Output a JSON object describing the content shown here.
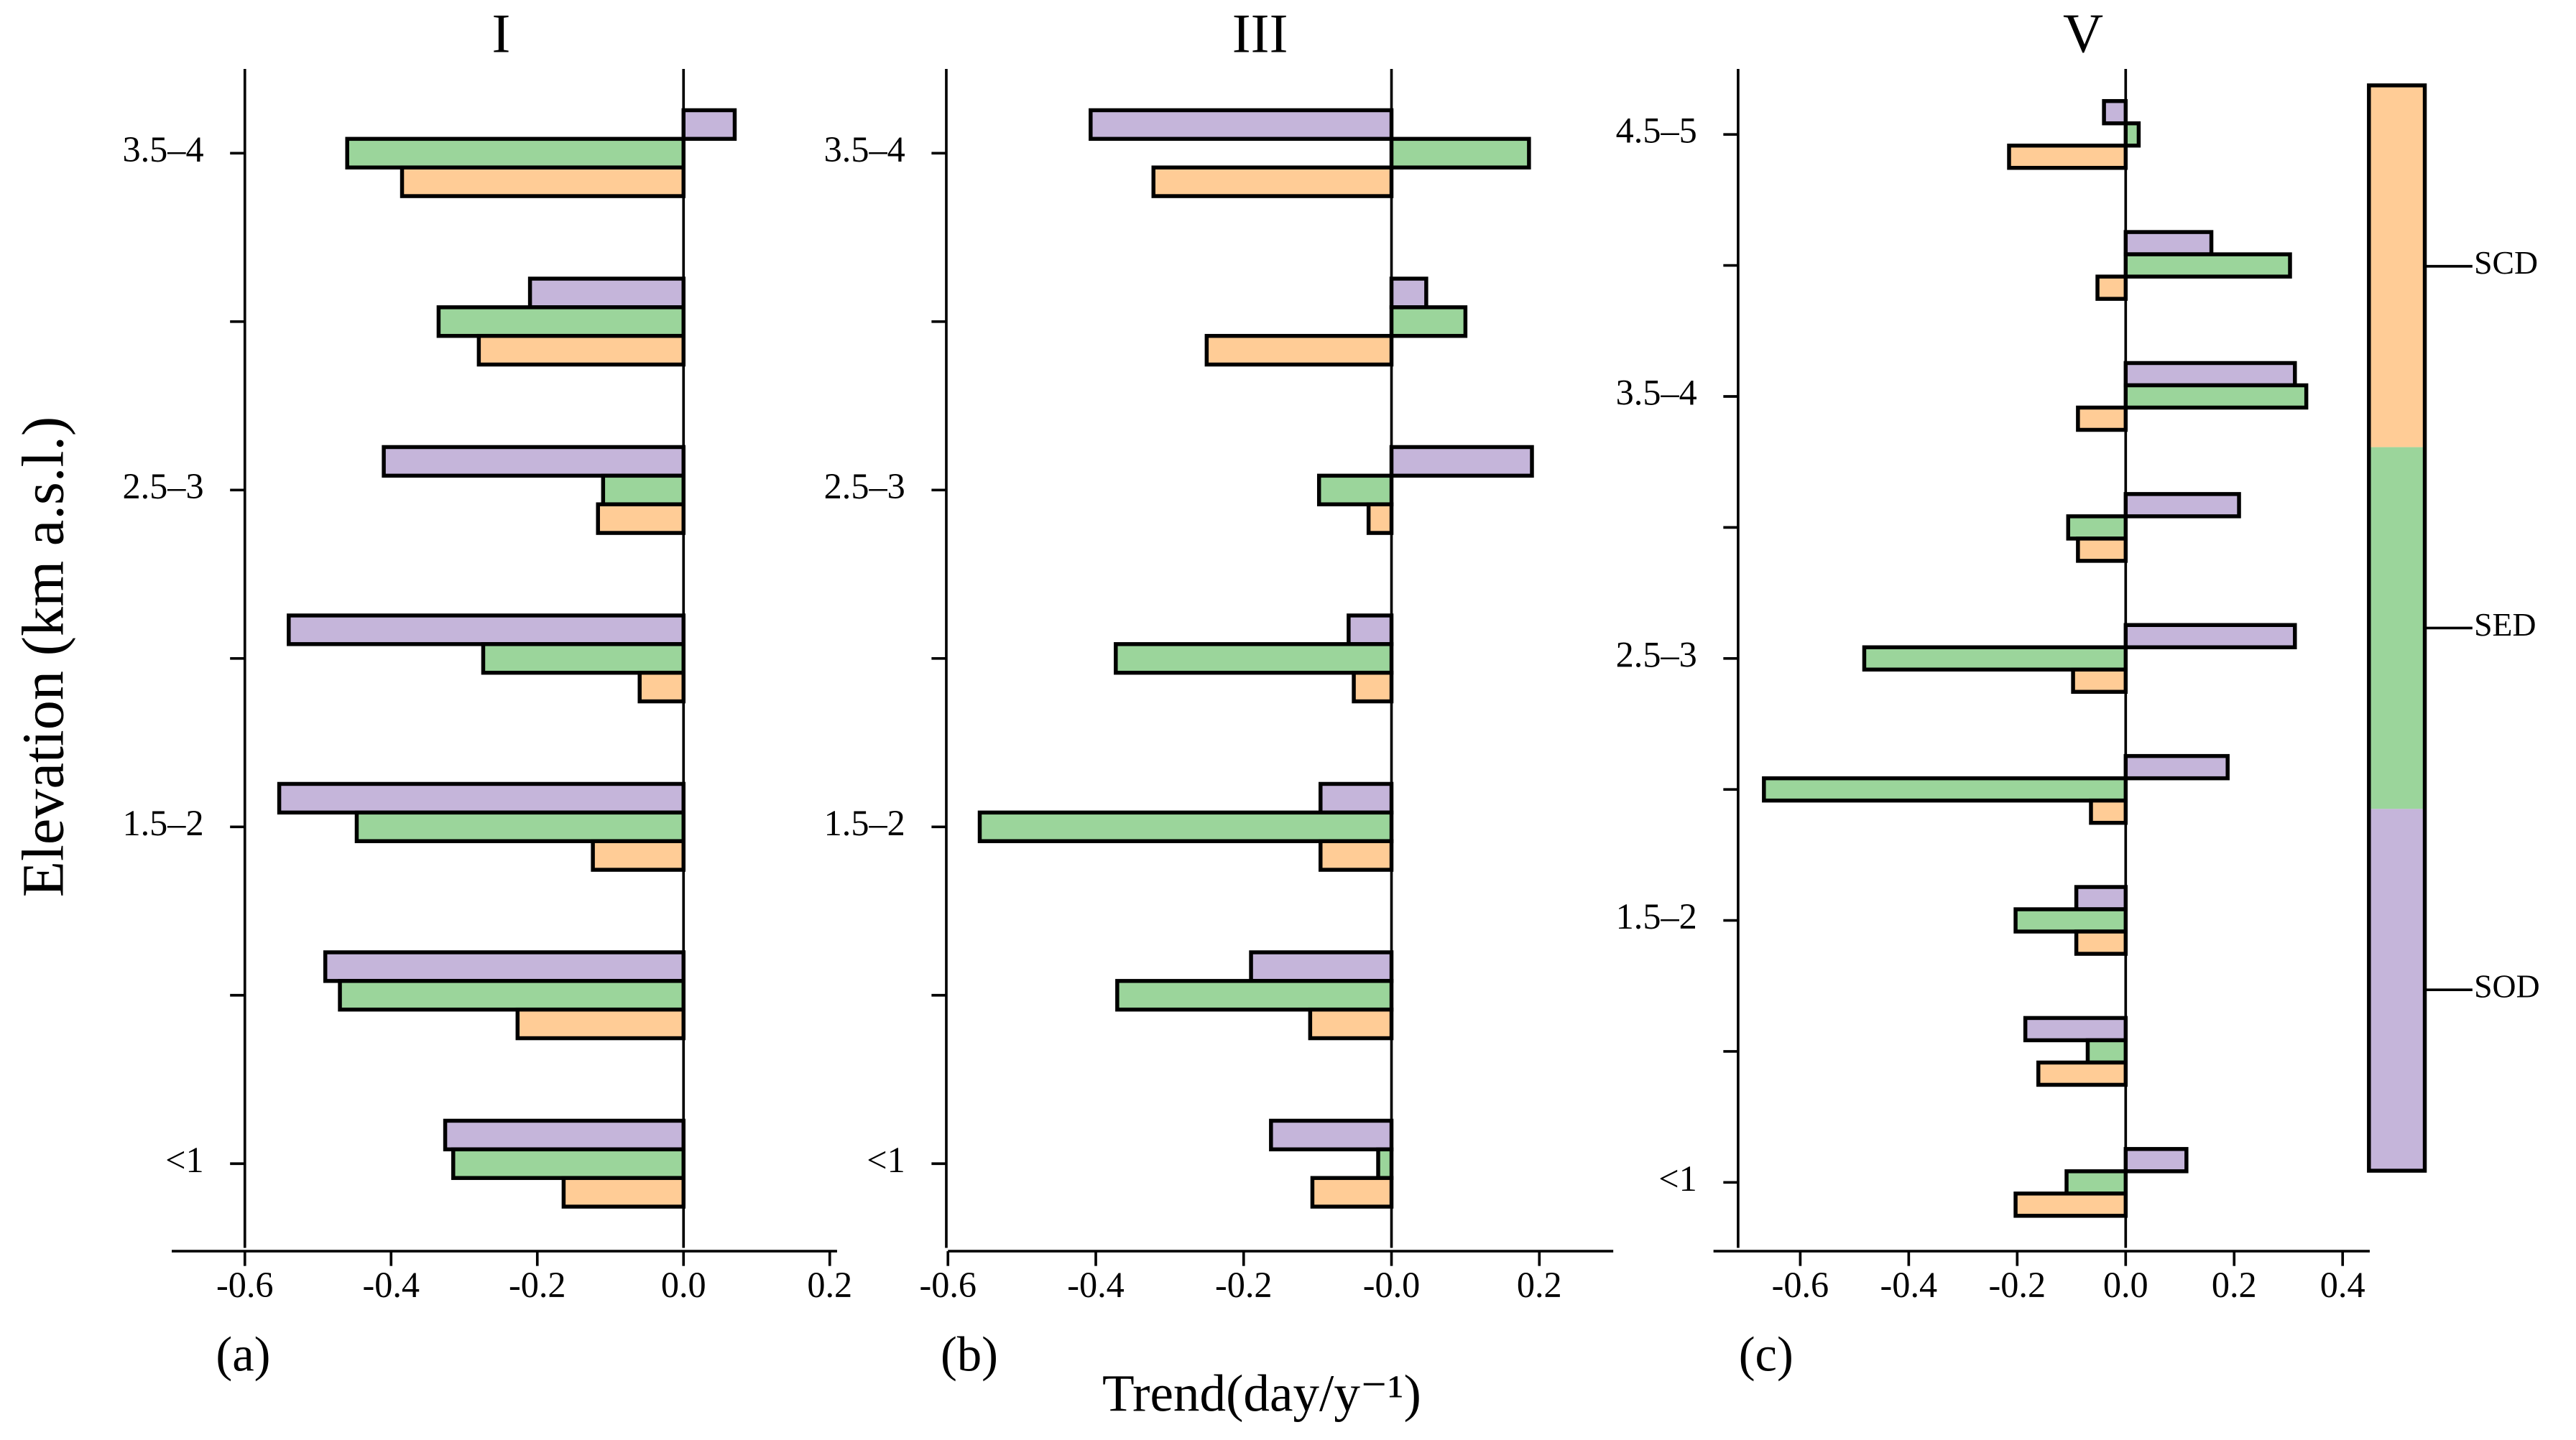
{
  "chart_data": [
    {
      "type": "bar",
      "orientation": "horizontal",
      "title": "I",
      "panel_label": "(a)",
      "ylabel": "Elevation  (km a.s.l.)",
      "categories": [
        "<1",
        null,
        "1.5–2",
        null,
        "2.5–3",
        null,
        "3.5–4"
      ],
      "series": [
        {
          "name": "SOD",
          "color": "#c5b5da",
          "values": [
            -0.326,
            -0.49,
            -0.553,
            -0.54,
            -0.41,
            -0.21,
            0.07
          ]
        },
        {
          "name": "SED",
          "color": "#9bd59b",
          "values": [
            -0.315,
            -0.47,
            -0.447,
            -0.274,
            -0.11,
            -0.335,
            -0.46
          ]
        },
        {
          "name": "SCD",
          "color": "#ffcc96",
          "values": [
            -0.164,
            -0.227,
            -0.124,
            -0.06,
            -0.117,
            -0.28,
            -0.385
          ]
        }
      ],
      "xlim": [
        -0.7,
        0.21
      ],
      "xticks": [
        -0.6,
        -0.4,
        -0.2,
        {
          "value": 0,
          "label": "0.0"
        },
        0.2
      ]
    },
    {
      "type": "bar",
      "orientation": "horizontal",
      "title": "III",
      "panel_label": "(b)",
      "xlabel": "Trend(day/y⁻¹)",
      "categories": [
        "<1",
        null,
        "1.5–2",
        null,
        "2.5–3",
        null,
        "3.5–4"
      ],
      "series": [
        {
          "name": "SOD",
          "color": "#c5b5da",
          "values": [
            -0.163,
            -0.19,
            -0.096,
            -0.058,
            0.19,
            0.047,
            -0.407
          ]
        },
        {
          "name": "SED",
          "color": "#9bd59b",
          "values": [
            -0.018,
            -0.371,
            -0.557,
            -0.373,
            -0.098,
            0.1,
            0.186
          ]
        },
        {
          "name": "SCD",
          "color": "#ffcc96",
          "values": [
            -0.107,
            -0.11,
            -0.096,
            -0.051,
            -0.031,
            -0.25,
            -0.322
          ]
        }
      ],
      "xlim": [
        -0.6,
        0.3
      ],
      "xticks": [
        -0.6,
        -0.4,
        -0.2,
        {
          "value": 0,
          "label": "-0.0"
        },
        0.2
      ]
    },
    {
      "type": "bar",
      "orientation": "horizontal",
      "title": "V",
      "panel_label": "(c)",
      "categories": [
        "<1",
        null,
        "1.5–2",
        null,
        "2.5–3",
        null,
        "3.5–4",
        null,
        "4.5–5"
      ],
      "series": [
        {
          "name": "SOD",
          "color": "#c5b5da",
          "values": [
            0.112,
            -0.185,
            -0.091,
            0.188,
            0.312,
            0.209,
            0.312,
            0.158,
            -0.04
          ]
        },
        {
          "name": "SED",
          "color": "#9bd59b",
          "values": [
            -0.109,
            -0.07,
            -0.203,
            -0.667,
            -0.482,
            -0.106,
            0.333,
            0.303,
            0.024
          ]
        },
        {
          "name": "SCD",
          "color": "#ffcc96",
          "values": [
            -0.203,
            -0.161,
            -0.091,
            -0.064,
            -0.097,
            -0.088,
            -0.088,
            -0.052,
            -0.215
          ]
        }
      ],
      "xlim": [
        -0.76,
        0.45
      ],
      "xticks": [
        -0.6,
        -0.4,
        -0.2,
        {
          "value": 0,
          "label": "0.0"
        },
        0.2,
        0.4
      ]
    }
  ]
}
